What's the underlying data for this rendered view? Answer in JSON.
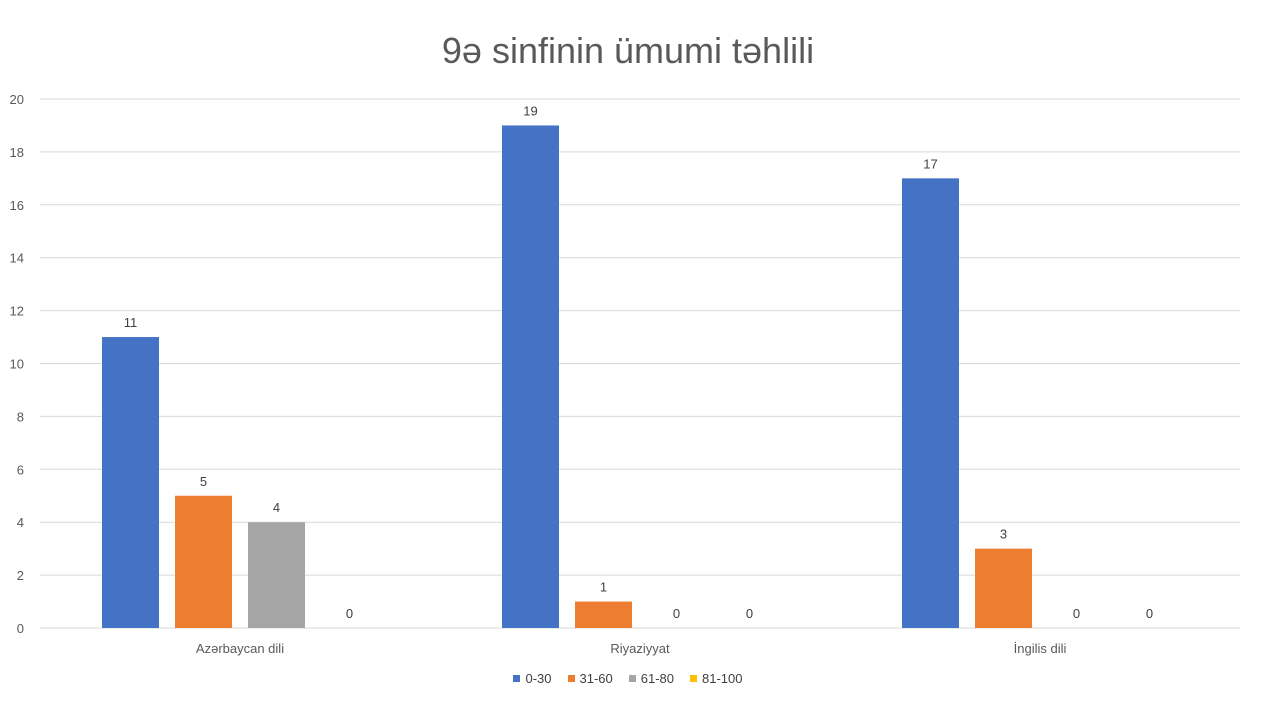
{
  "chart_data": {
    "type": "bar",
    "title": "9ə sinfinin ümumi təhlili",
    "categories": [
      "Azərbaycan dili",
      "Riyaziyyat",
      "İngilis dili"
    ],
    "series": [
      {
        "name": "0-30",
        "values": [
          11,
          19,
          17
        ],
        "color": "#4472C4"
      },
      {
        "name": "31-60",
        "values": [
          5,
          1,
          3
        ],
        "color": "#ED7D31"
      },
      {
        "name": "61-80",
        "values": [
          4,
          0,
          0
        ],
        "color": "#A5A5A5"
      },
      {
        "name": "81-100",
        "values": [
          0,
          0,
          0
        ],
        "color": "#FFC000"
      }
    ],
    "ylim": [
      0,
      20
    ],
    "yticks": [
      0,
      2,
      4,
      6,
      8,
      10,
      12,
      14,
      16,
      18,
      20
    ],
    "grid": true,
    "legend_position": "bottom",
    "data_labels": true
  }
}
